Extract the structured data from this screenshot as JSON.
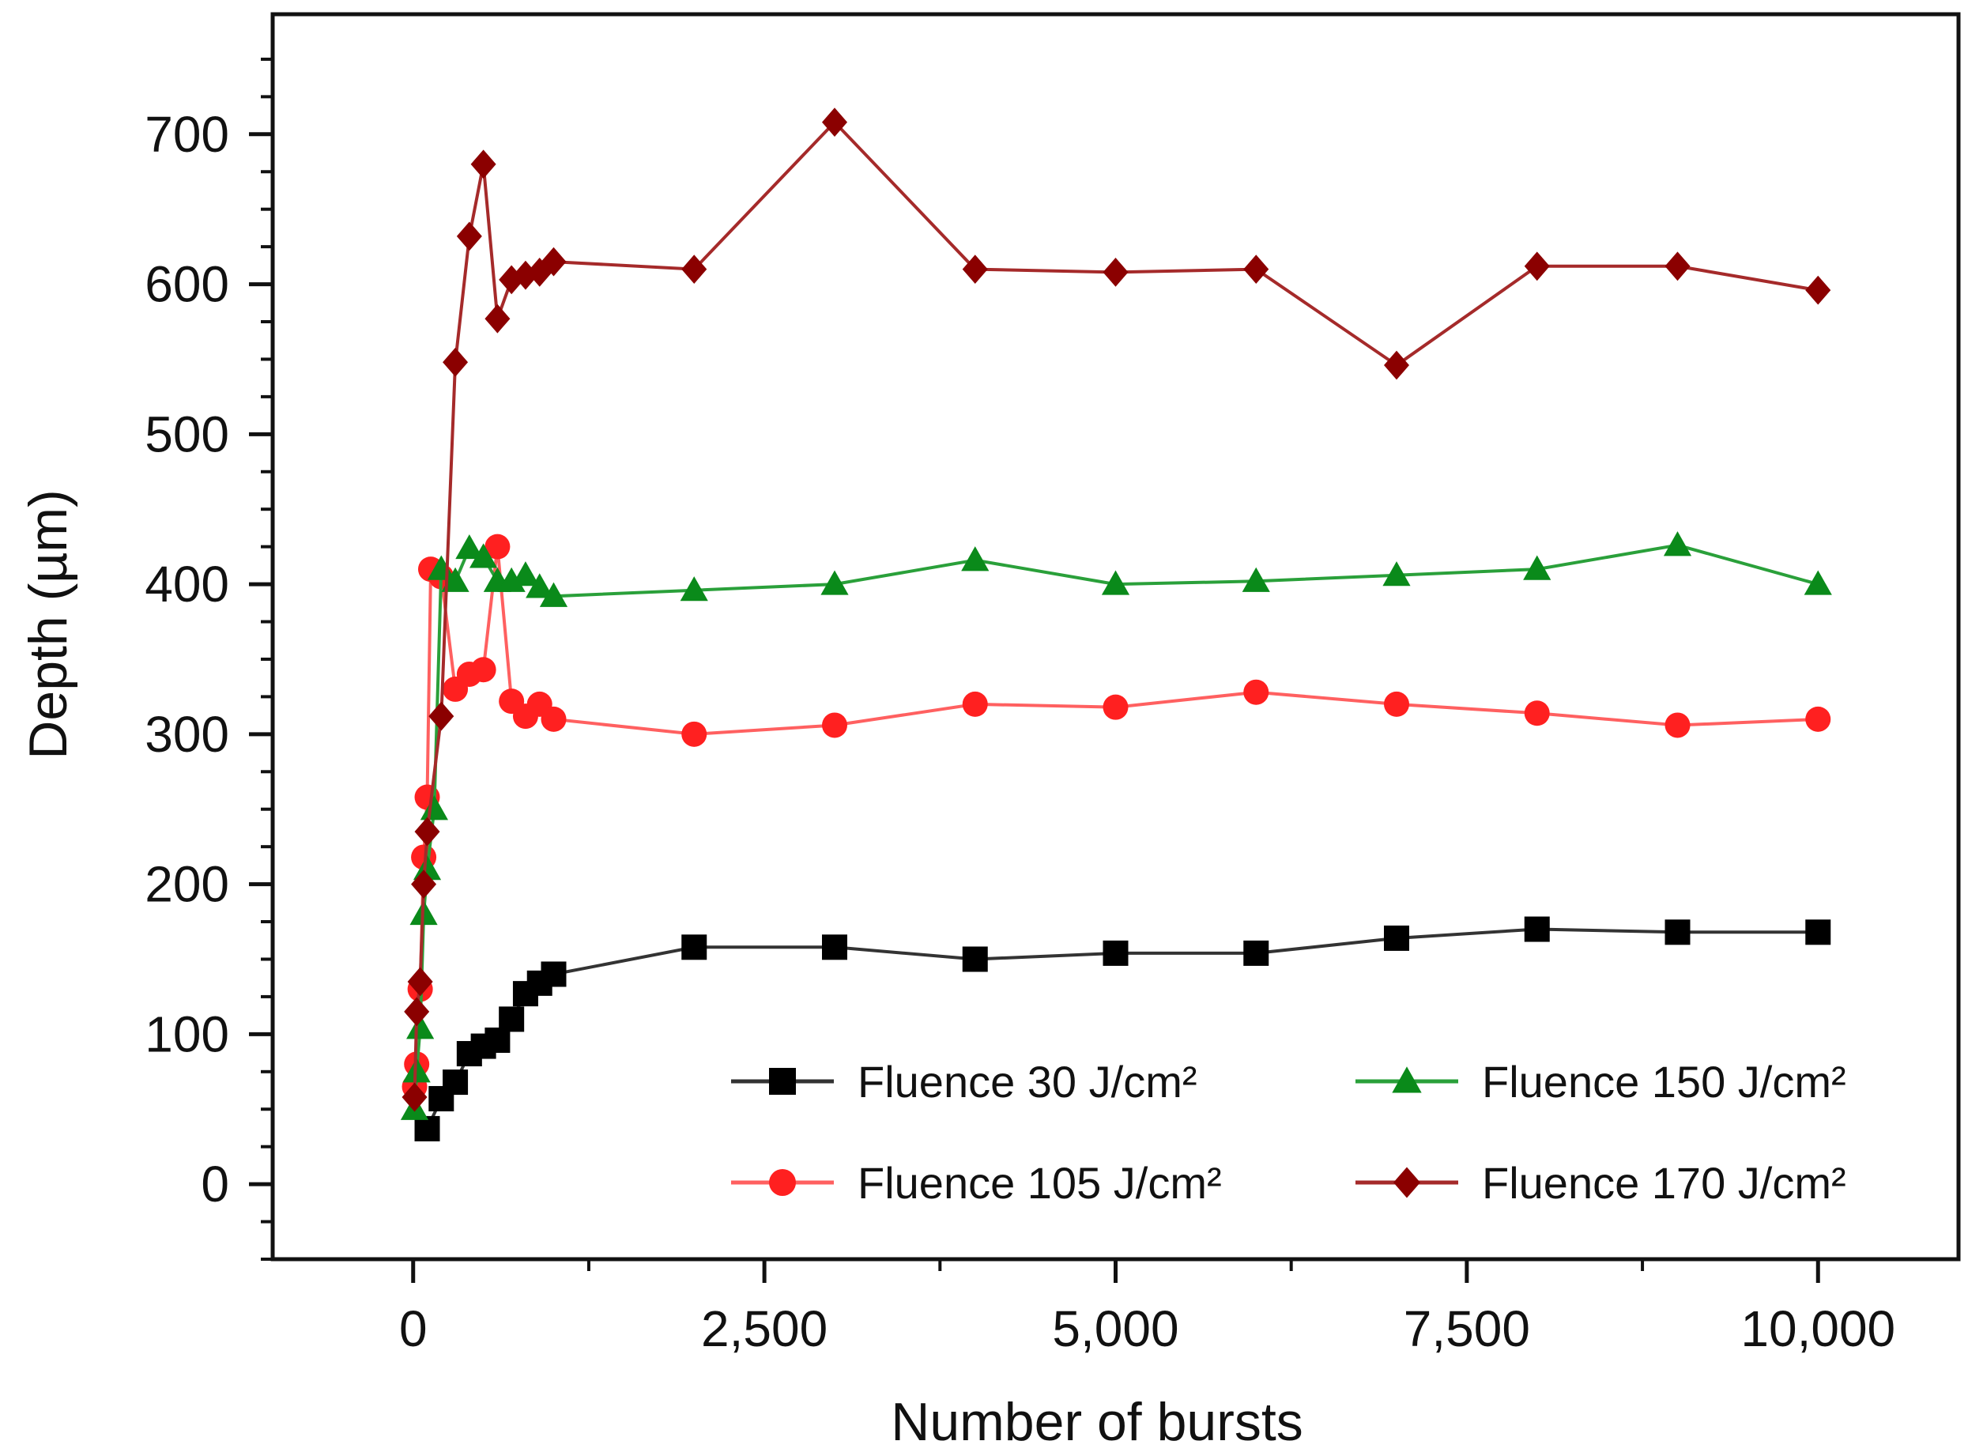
{
  "chart_data": {
    "type": "line",
    "title": "",
    "xlabel": "Number of bursts",
    "ylabel": "Depth (µm)",
    "xlim": [
      -1000,
      11000
    ],
    "ylim": [
      -50,
      780
    ],
    "xticks": [
      0,
      2500,
      5000,
      7500,
      10000
    ],
    "xtick_labels": [
      "0",
      "2,500",
      "5,000",
      "7,500",
      "10,000"
    ],
    "yticks": [
      0,
      100,
      200,
      300,
      400,
      500,
      600,
      700
    ],
    "ytick_labels": [
      "0",
      "100",
      "200",
      "300",
      "400",
      "500",
      "600",
      "700"
    ],
    "grid": false,
    "legend_position": "bottom-right",
    "series": [
      {
        "name": "Fluence 30 J/cm²",
        "color": "#000000",
        "line_color": "#333333",
        "marker": "square",
        "x": [
          100,
          200,
          300,
          400,
          500,
          600,
          700,
          800,
          900,
          1000,
          2000,
          3000,
          4000,
          5000,
          6000,
          7000,
          8000,
          9000,
          10000
        ],
        "y": [
          37,
          57,
          68,
          87,
          92,
          96,
          110,
          127,
          134,
          140,
          158,
          158,
          150,
          154,
          154,
          164,
          170,
          168,
          168
        ]
      },
      {
        "name": "Fluence 105 J/cm²",
        "color": "#ff2020",
        "line_color": "#ff6060",
        "marker": "circle",
        "x": [
          10,
          25,
          50,
          75,
          100,
          125,
          200,
          300,
          400,
          500,
          600,
          700,
          800,
          900,
          1000,
          2000,
          3000,
          4000,
          5000,
          6000,
          7000,
          8000,
          9000,
          10000
        ],
        "y": [
          65,
          80,
          130,
          218,
          258,
          410,
          405,
          330,
          340,
          343,
          425,
          322,
          312,
          320,
          310,
          300,
          306,
          320,
          318,
          328,
          320,
          314,
          306,
          310
        ]
      },
      {
        "name": "Fluence 150 J/cm²",
        "color": "#0a8a1a",
        "line_color": "#2aa03a",
        "marker": "triangle",
        "x": [
          10,
          25,
          50,
          75,
          100,
          150,
          200,
          300,
          400,
          500,
          600,
          700,
          800,
          900,
          1000,
          2000,
          3000,
          4000,
          5000,
          6000,
          7000,
          8000,
          9000,
          10000
        ],
        "y": [
          50,
          75,
          104,
          180,
          210,
          250,
          410,
          402,
          424,
          418,
          402,
          402,
          406,
          398,
          392,
          396,
          400,
          416,
          400,
          402,
          406,
          410,
          426,
          400
        ]
      },
      {
        "name": "Fluence 170 J/cm²",
        "color": "#8b0000",
        "line_color": "#a52a2a",
        "marker": "diamond",
        "x": [
          10,
          25,
          50,
          75,
          100,
          200,
          300,
          400,
          500,
          600,
          700,
          800,
          900,
          1000,
          2000,
          3000,
          4000,
          5000,
          6000,
          7000,
          8000,
          9000,
          10000
        ],
        "y": [
          58,
          115,
          135,
          200,
          235,
          312,
          548,
          632,
          680,
          577,
          603,
          606,
          608,
          615,
          610,
          708,
          610,
          608,
          610,
          546,
          612,
          612,
          596
        ]
      }
    ]
  }
}
